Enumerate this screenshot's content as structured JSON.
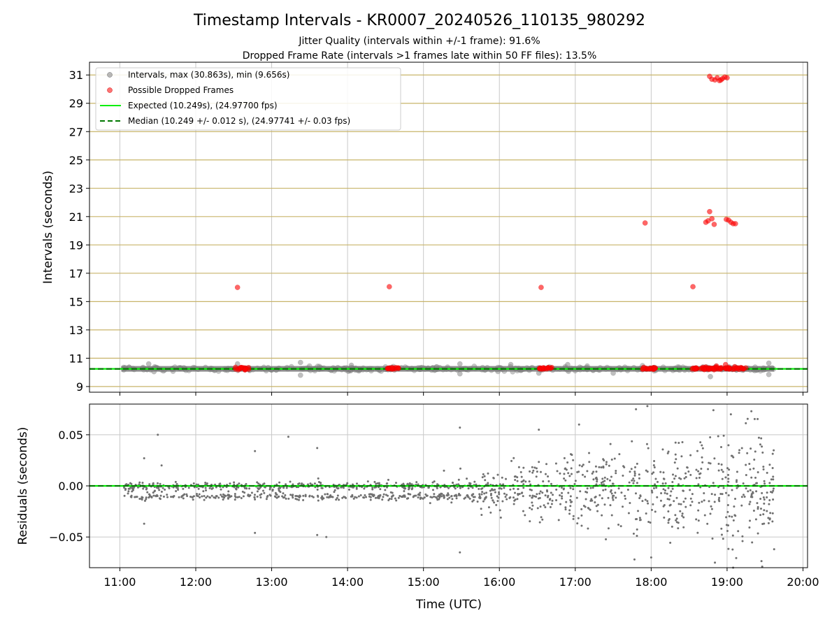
{
  "title": "Timestamp Intervals - KR0007_20240526_110135_980292",
  "subtitle_1": "Jitter Quality (intervals within +/-1 frame): 91.6%",
  "subtitle_2": "Dropped Frame Rate (intervals >1 frames late within 50 FF files): 13.5%",
  "colors": {
    "interval_points": "#808080",
    "dropped_points": "#ff0000",
    "expected_line": "#00ee00",
    "median_line": "#007700",
    "hgrid_top": "#c8b46a",
    "grid": "#c8c8c8",
    "residual_points": "#707070"
  },
  "chart_data": [
    {
      "type": "scatter",
      "ylabel": "Intervals (seconds)",
      "xlabel": "",
      "xlim_hours": [
        10.6,
        20.06
      ],
      "ylim": [
        8.6,
        31.9
      ],
      "yticks": [
        9,
        11,
        13,
        15,
        17,
        19,
        21,
        23,
        25,
        27,
        29,
        31
      ],
      "ytick_labels": [
        "9",
        "11",
        "13",
        "15",
        "17",
        "19",
        "21",
        "23",
        "25",
        "27",
        "29",
        "31"
      ],
      "xticks_hours": [
        11,
        12,
        13,
        14,
        15,
        16,
        17,
        18,
        19,
        20
      ],
      "legend_position": "upper-left",
      "legend": [
        "Intervals, max (30.863s), min (9.656s)",
        "Possible Dropped Frames",
        "Expected (10.249s), (24.97700 fps)",
        "Median (10.249 +/- 0.012 s), (24.97741 +/- 0.03 fps)"
      ],
      "expected_y": 10.249,
      "median_y": 10.249,
      "grid": "y",
      "series": [
        {
          "name": "Intervals, max (30.863s), min (9.656s)",
          "style": "dense band of points around median",
          "x_range_hours": [
            11.02,
            19.62
          ],
          "center": 10.249,
          "min": 9.656,
          "max": 30.863,
          "outliers": [
            [
              11.38,
              10.6
            ],
            [
              11.45,
              10.05
            ],
            [
              12.55,
              10.6
            ],
            [
              13.38,
              10.7
            ],
            [
              13.38,
              9.8
            ],
            [
              14.05,
              10.5
            ],
            [
              15.48,
              10.6
            ],
            [
              15.48,
              9.9
            ],
            [
              16.15,
              10.55
            ],
            [
              16.52,
              9.95
            ],
            [
              16.9,
              10.55
            ],
            [
              17.5,
              9.95
            ],
            [
              18.78,
              9.7
            ],
            [
              19.55,
              10.65
            ],
            [
              19.55,
              9.85
            ]
          ]
        },
        {
          "name": "Possible Dropped Frames",
          "points": [
            [
              12.55,
              16.0
            ],
            [
              14.55,
              16.05
            ],
            [
              16.55,
              16.0
            ],
            [
              17.92,
              20.55
            ],
            [
              18.55,
              16.05
            ],
            [
              18.72,
              20.6
            ],
            [
              18.75,
              20.7
            ],
            [
              18.77,
              21.35
            ],
            [
              18.8,
              20.85
            ],
            [
              18.83,
              20.45
            ],
            [
              18.99,
              20.8
            ],
            [
              19.02,
              20.75
            ],
            [
              19.05,
              20.6
            ],
            [
              19.08,
              20.5
            ],
            [
              19.11,
              20.5
            ],
            [
              18.77,
              30.9
            ],
            [
              18.8,
              30.7
            ],
            [
              18.84,
              30.65
            ],
            [
              18.87,
              30.8
            ],
            [
              18.9,
              30.6
            ],
            [
              18.94,
              30.75
            ],
            [
              18.97,
              30.85
            ],
            [
              19.0,
              30.8
            ],
            [
              18.92,
              30.65
            ],
            [
              18.98,
              10.55
            ],
            [
              18.86,
              10.45
            ],
            [
              19.1,
              10.4
            ]
          ],
          "clusters_near_median_hours": [
            [
              12.52,
              12.7
            ],
            [
              14.52,
              14.68
            ],
            [
              16.52,
              16.7
            ],
            [
              17.88,
              18.06
            ],
            [
              18.52,
              19.25
            ]
          ]
        }
      ]
    },
    {
      "type": "scatter",
      "ylabel": "Residuals (seconds)",
      "xlabel": "Time (UTC)",
      "xlim_hours": [
        10.6,
        20.06
      ],
      "ylim": [
        -0.08,
        0.08
      ],
      "yticks": [
        -0.05,
        0.0,
        0.05
      ],
      "ytick_labels": [
        "−0.05",
        "0.00",
        "0.05"
      ],
      "xticks_hours": [
        11,
        12,
        13,
        14,
        15,
        16,
        17,
        18,
        19,
        20
      ],
      "xtick_labels": [
        "11:00",
        "12:00",
        "13:00",
        "14:00",
        "15:00",
        "16:00",
        "17:00",
        "18:00",
        "19:00",
        "20:00"
      ],
      "grid": "both",
      "zero_line": 0.0,
      "series": [
        {
          "style": "residual scatter, spread growing with time",
          "x_range_hours": [
            11.02,
            19.62
          ],
          "baseline_bands": [
            0.0,
            -0.0105
          ],
          "notable_points": [
            [
              11.32,
              0.027
            ],
            [
              11.32,
              -0.037
            ],
            [
              11.5,
              0.05
            ],
            [
              11.55,
              0.02
            ],
            [
              12.78,
              0.034
            ],
            [
              12.78,
              -0.046
            ],
            [
              13.22,
              0.048
            ],
            [
              13.6,
              -0.048
            ],
            [
              13.6,
              0.037
            ],
            [
              13.72,
              -0.05
            ],
            [
              15.48,
              0.057
            ],
            [
              15.48,
              -0.065
            ],
            [
              16.52,
              0.055
            ],
            [
              17.05,
              0.06
            ],
            [
              17.8,
              0.075
            ],
            [
              17.78,
              -0.072
            ],
            [
              17.95,
              0.078
            ],
            [
              18.0,
              -0.07
            ],
            [
              18.82,
              0.074
            ],
            [
              18.84,
              -0.075
            ],
            [
              19.05,
              0.07
            ],
            [
              19.08,
              -0.08
            ],
            [
              19.32,
              0.073
            ],
            [
              19.62,
              -0.062
            ]
          ]
        }
      ]
    }
  ]
}
